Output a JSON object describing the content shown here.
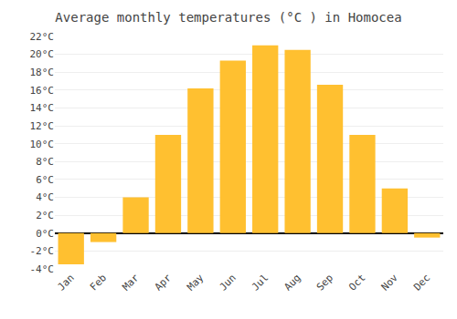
{
  "chart_data": {
    "type": "bar",
    "title": "Average monthly temperatures (°C ) in Homocea",
    "categories": [
      "Jan",
      "Feb",
      "Mar",
      "Apr",
      "May",
      "Jun",
      "Jul",
      "Aug",
      "Sep",
      "Oct",
      "Nov",
      "Dec"
    ],
    "values": [
      -3.5,
      -1.0,
      4.0,
      11.0,
      16.2,
      19.3,
      21.0,
      20.5,
      16.6,
      11.0,
      5.0,
      -0.5
    ],
    "color": "#FFC030",
    "ylim": [
      -4,
      22
    ],
    "yticks": [
      {
        "value": -4,
        "label": "-4°C"
      },
      {
        "value": -2,
        "label": "-2°C"
      },
      {
        "value": 0,
        "label": "0°C"
      },
      {
        "value": 2,
        "label": "2°C"
      },
      {
        "value": 4,
        "label": "4°C"
      },
      {
        "value": 6,
        "label": "6°C"
      },
      {
        "value": 8,
        "label": "8°C"
      },
      {
        "value": 10,
        "label": "10°C"
      },
      {
        "value": 12,
        "label": "12°C"
      },
      {
        "value": 14,
        "label": "14°C"
      },
      {
        "value": 16,
        "label": "16°C"
      },
      {
        "value": 18,
        "label": "18°C"
      },
      {
        "value": 20,
        "label": "20°C"
      },
      {
        "value": 22,
        "label": "22°C"
      }
    ],
    "grid": true
  }
}
